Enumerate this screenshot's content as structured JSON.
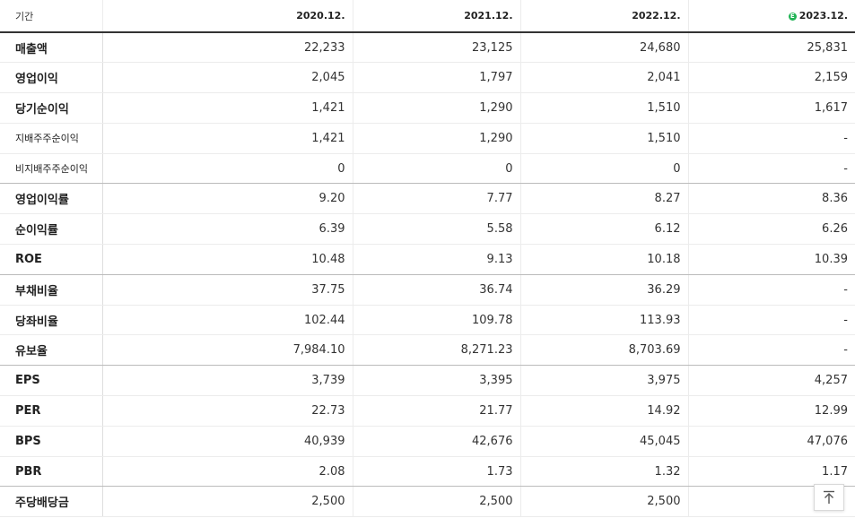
{
  "table": {
    "header": {
      "period_label": "기간",
      "years": [
        "2020.12.",
        "2021.12.",
        "2022.12.",
        "2023.12."
      ],
      "estimate_badge": "E",
      "estimate_badge_color": "#1fb354"
    },
    "rows": [
      {
        "label": "매출액",
        "values": [
          "22,233",
          "23,125",
          "24,680",
          "25,831"
        ]
      },
      {
        "label": "영업이익",
        "values": [
          "2,045",
          "1,797",
          "2,041",
          "2,159"
        ]
      },
      {
        "label": "당기순이익",
        "values": [
          "1,421",
          "1,290",
          "1,510",
          "1,617"
        ]
      },
      {
        "label": "지배주주순이익",
        "values": [
          "1,421",
          "1,290",
          "1,510",
          "-"
        ]
      },
      {
        "label": "비지배주주순이익",
        "values": [
          "0",
          "0",
          "0",
          "-"
        ]
      },
      {
        "label": "영업이익률",
        "values": [
          "9.20",
          "7.77",
          "8.27",
          "8.36"
        ]
      },
      {
        "label": "순이익률",
        "values": [
          "6.39",
          "5.58",
          "6.12",
          "6.26"
        ]
      },
      {
        "label": "ROE",
        "values": [
          "10.48",
          "9.13",
          "10.18",
          "10.39"
        ]
      },
      {
        "label": "부채비율",
        "values": [
          "37.75",
          "36.74",
          "36.29",
          "-"
        ]
      },
      {
        "label": "당좌비율",
        "values": [
          "102.44",
          "109.78",
          "113.93",
          "-"
        ]
      },
      {
        "label": "유보율",
        "values": [
          "7,984.10",
          "8,271.23",
          "8,703.69",
          "-"
        ]
      },
      {
        "label": "EPS",
        "values": [
          "3,739",
          "3,395",
          "3,975",
          "4,257"
        ]
      },
      {
        "label": "PER",
        "values": [
          "22.73",
          "21.77",
          "14.92",
          "12.99"
        ]
      },
      {
        "label": "BPS",
        "values": [
          "40,939",
          "42,676",
          "45,045",
          "47,076"
        ]
      },
      {
        "label": "PBR",
        "values": [
          "2.08",
          "1.73",
          "1.32",
          "1.17"
        ]
      },
      {
        "label": "주당배당금",
        "values": [
          "2,500",
          "2,500",
          "2,500",
          ""
        ]
      }
    ]
  },
  "scroll_top_button": {
    "icon": "arrow-up-to-top-icon"
  }
}
